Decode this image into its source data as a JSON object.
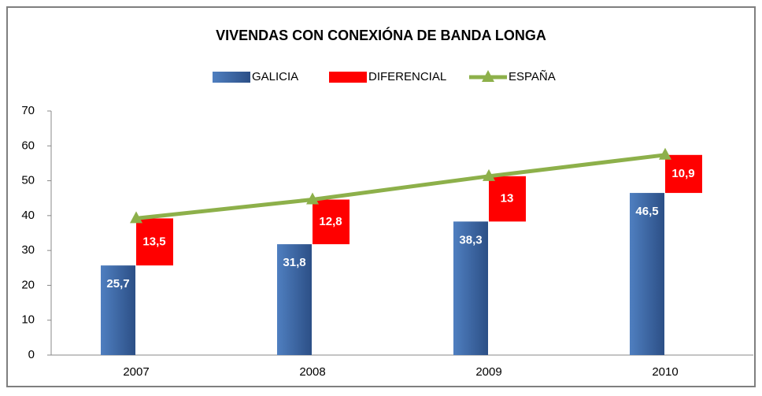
{
  "chart_data": {
    "type": "bar_line",
    "title": "VIVENDAS CON CONEXIÓNA DE BANDA LONGA",
    "categories": [
      "2007",
      "2008",
      "2009",
      "2010"
    ],
    "series": [
      {
        "name": "GALICIA",
        "color": "#3a66a8",
        "type": "bar",
        "values": [
          25.7,
          31.8,
          38.3,
          46.5
        ],
        "value_labels": [
          "25,7",
          "31,8",
          "38,3",
          "46,5"
        ]
      },
      {
        "name": "DIFERENCIAL",
        "color": "#ff0000",
        "type": "stacked_offset",
        "values": [
          13.5,
          12.8,
          13,
          10.9
        ],
        "value_labels": [
          "13,5",
          "12,8",
          "13",
          "10,9"
        ]
      },
      {
        "name": "ESPAÑA",
        "color": "#8db04a",
        "type": "line",
        "values": [
          39.2,
          44.6,
          51.3,
          57.4
        ]
      }
    ],
    "ylim": [
      0,
      70
    ],
    "yticks": [
      0,
      10,
      20,
      30,
      40,
      50,
      60,
      70
    ],
    "grid": false,
    "legend": "top"
  }
}
